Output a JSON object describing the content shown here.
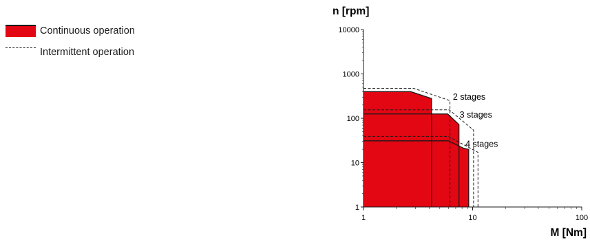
{
  "legend": {
    "continuous_label": "Continuous operation",
    "intermittent_label": "Intermittent operation",
    "continuous_color": "#e30613",
    "intermittent_style": "dashed"
  },
  "chart_data": {
    "type": "area",
    "ylabel": "n [rpm]",
    "xlabel": "M [Nm]",
    "xscale": "log",
    "yscale": "log",
    "xlim": [
      1,
      100
    ],
    "ylim": [
      1,
      10000
    ],
    "xticks": [
      1,
      10,
      100
    ],
    "xtick_labels": [
      "1",
      "10",
      "100"
    ],
    "yticks": [
      1,
      10,
      100,
      1000,
      10000
    ],
    "ytick_labels": [
      "1",
      "10",
      "100",
      "1000",
      "10000"
    ],
    "series": [
      {
        "name": "2 stages",
        "continuous": [
          [
            1,
            1
          ],
          [
            1,
            400
          ],
          [
            2.7,
            400
          ],
          [
            4.2,
            280
          ],
          [
            4.2,
            1
          ]
        ],
        "intermittent": [
          [
            1,
            470
          ],
          [
            2.9,
            470
          ],
          [
            6.2,
            250
          ],
          [
            6.2,
            1
          ]
        ]
      },
      {
        "name": "3 stages",
        "continuous": [
          [
            1,
            1
          ],
          [
            1,
            125
          ],
          [
            5.9,
            125
          ],
          [
            7.5,
            72
          ],
          [
            7.5,
            1
          ]
        ],
        "intermittent": [
          [
            1,
            155
          ],
          [
            6.1,
            155
          ],
          [
            10.2,
            54
          ],
          [
            10.2,
            1
          ]
        ]
      },
      {
        "name": "4 stages",
        "continuous": [
          [
            1,
            1
          ],
          [
            1,
            31
          ],
          [
            6.0,
            31
          ],
          [
            8.3,
            21
          ],
          [
            9.2,
            20
          ],
          [
            9.2,
            1
          ]
        ],
        "intermittent": [
          [
            1,
            39
          ],
          [
            6.0,
            39
          ],
          [
            11.2,
            17
          ],
          [
            11.2,
            1
          ]
        ]
      }
    ],
    "fill_color": "#e30613",
    "line_color": "#1a1a1a"
  }
}
